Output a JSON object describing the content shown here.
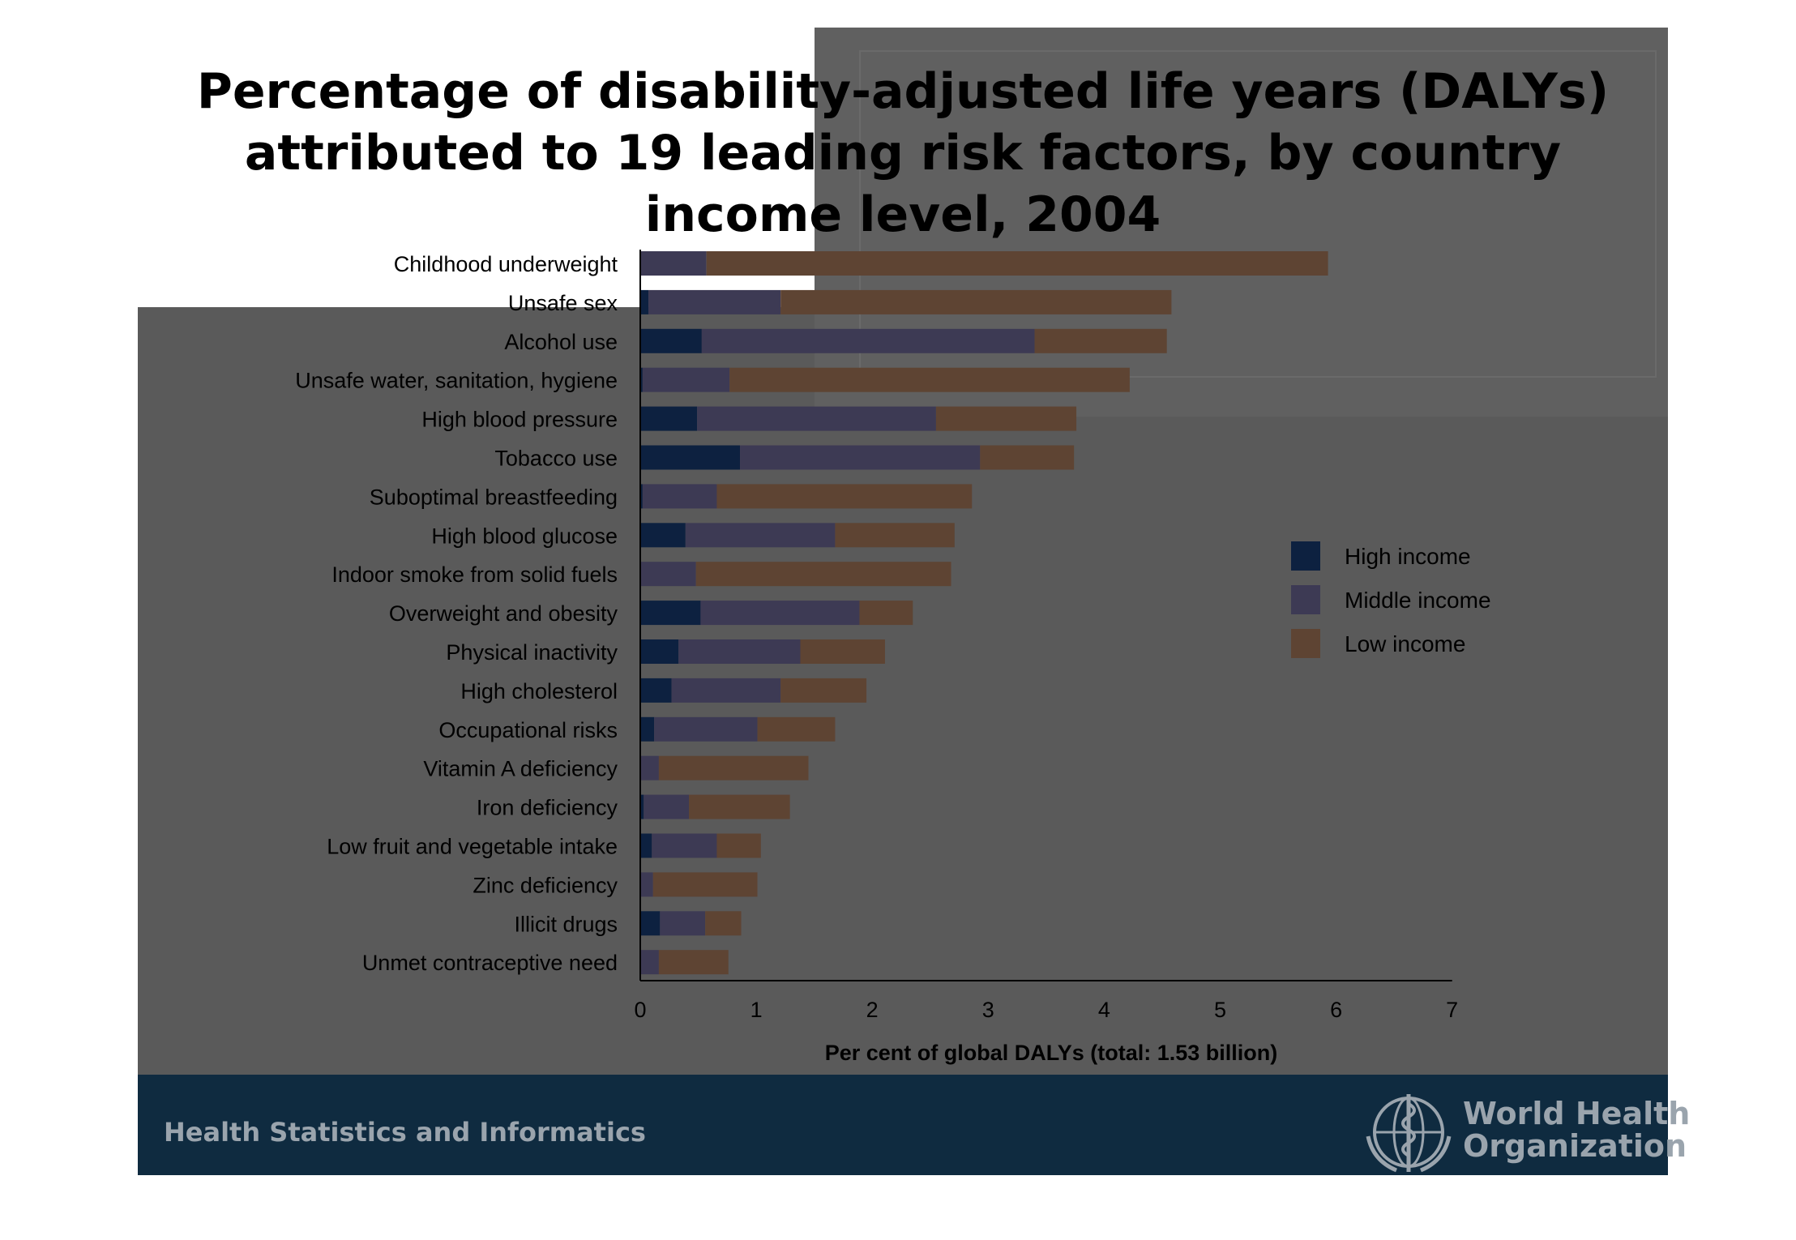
{
  "slide": {
    "title_lines": [
      "Percentage of disability-adjusted life years (DALYs)",
      "attributed to 19 leading risk factors, by country",
      "income level, 2004"
    ],
    "footer_text": "Health Statistics and Informatics",
    "org_name_line1": "World Health",
    "org_name_line2": "Organization"
  },
  "colors": {
    "high": "#0d2140",
    "middle": "#3d3a54",
    "low": "#5e4433",
    "text": "#000000"
  },
  "chart_data": {
    "type": "bar",
    "orientation": "horizontal",
    "stacked": true,
    "xlabel": "Per cent of global DALYs (total: 1.53 billion)",
    "xlim": [
      0,
      7
    ],
    "xticks": [
      0,
      1,
      2,
      3,
      4,
      5,
      6,
      7
    ],
    "legend_position": "right",
    "categories": [
      "Childhood underweight",
      "Unsafe sex",
      "Alcohol use",
      "Unsafe water, sanitation, hygiene",
      "High blood pressure",
      "Tobacco use",
      "Suboptimal breastfeeding",
      "High blood glucose",
      "Indoor smoke from solid fuels",
      "Overweight and obesity",
      "Physical inactivity",
      "High cholesterol",
      "Occupational risks",
      "Vitamin A deficiency",
      "Iron deficiency",
      "Low fruit and vegetable intake",
      "Zinc deficiency",
      "Illicit drugs",
      "Unmet contraceptive need"
    ],
    "series": [
      {
        "name": "High income",
        "values": [
          0.0,
          0.07,
          0.53,
          0.02,
          0.49,
          0.86,
          0.02,
          0.39,
          0.0,
          0.52,
          0.33,
          0.27,
          0.12,
          0.0,
          0.03,
          0.1,
          0.0,
          0.17,
          0.0
        ]
      },
      {
        "name": "Middle income",
        "values": [
          0.57,
          1.14,
          2.87,
          0.75,
          2.06,
          2.07,
          0.64,
          1.29,
          0.48,
          1.37,
          1.05,
          0.94,
          0.89,
          0.16,
          0.39,
          0.56,
          0.11,
          0.39,
          0.16
        ]
      },
      {
        "name": "Low income",
        "values": [
          5.36,
          3.37,
          1.14,
          3.45,
          1.21,
          0.81,
          2.2,
          1.03,
          2.2,
          0.46,
          0.73,
          0.74,
          0.67,
          1.29,
          0.87,
          0.38,
          0.9,
          0.31,
          0.6
        ]
      }
    ]
  }
}
